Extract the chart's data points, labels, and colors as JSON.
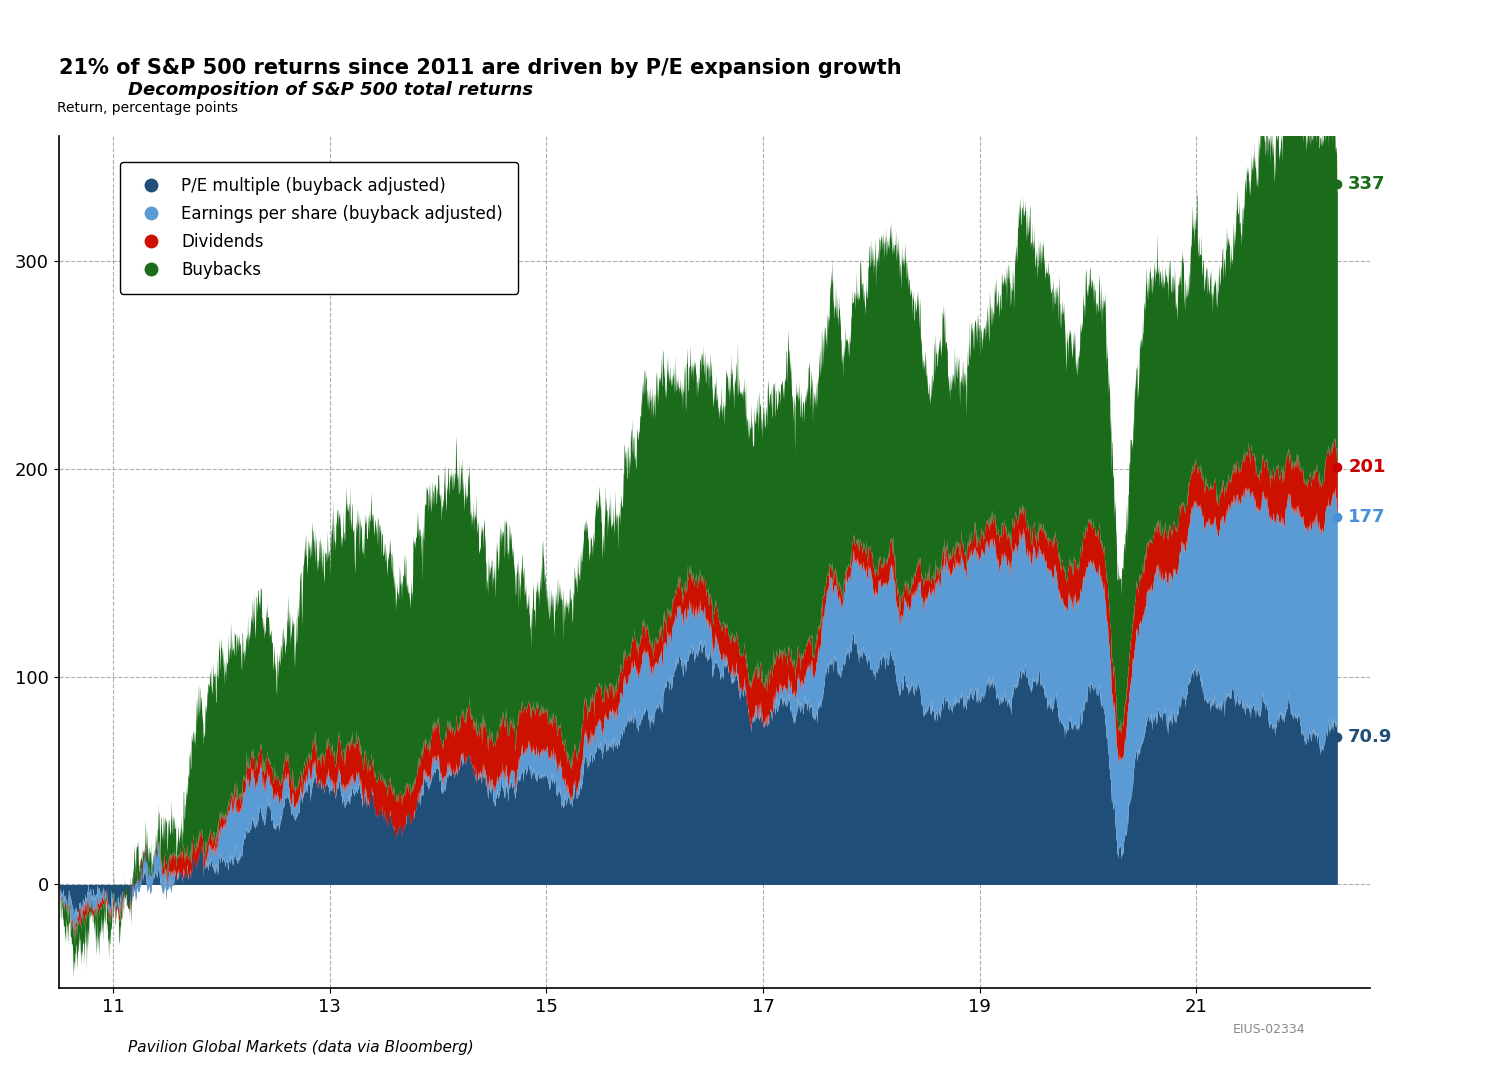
{
  "title": "21% of S&P 500 returns since 2011 are driven by P/E expansion growth",
  "subtitle": "Decomposition of S&P 500 total returns",
  "ylabel": "Return, percentage points",
  "xlabel_footer": "Pavilion Global Markets (data via Bloomberg)",
  "watermark": "EIUS-02334",
  "xmin": 10.5,
  "xmax": 22.6,
  "ymin": -50,
  "ymax": 360,
  "yticks": [
    0,
    100,
    200,
    300
  ],
  "xticks": [
    11,
    13,
    15,
    17,
    19,
    21
  ],
  "end_labels": {
    "buybacks": {
      "value": "337",
      "color": "#1a6b1a",
      "y": 337
    },
    "dividends": {
      "value": "201",
      "color": "#cc0000",
      "y": 201
    },
    "eps": {
      "value": "177",
      "color": "#4a90d9",
      "y": 177
    },
    "pe": {
      "value": "70.9",
      "color": "#1f4e79",
      "y": 70.9
    }
  },
  "colors": {
    "pe": "#1f4e79",
    "eps": "#5b9bd5",
    "dividends": "#cc1100",
    "buybacks": "#1a6b1a",
    "background": "#ffffff",
    "grid": "#aaaaaa"
  },
  "legend": [
    {
      "label": "P/E multiple (buyback adjusted)",
      "color": "#1f4e79"
    },
    {
      "label": "Earnings per share (buyback adjusted)",
      "color": "#5b9bd5"
    },
    {
      "label": "Dividends",
      "color": "#cc1100"
    },
    {
      "label": "Buybacks",
      "color": "#1a6b1a"
    }
  ],
  "n_points": 3000
}
